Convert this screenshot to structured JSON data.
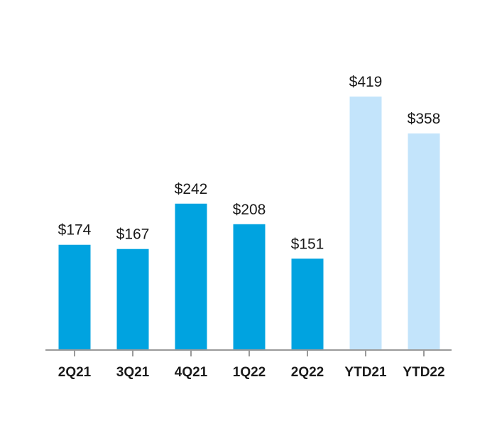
{
  "chart_data": {
    "type": "bar",
    "categories": [
      "2Q21",
      "3Q21",
      "4Q21",
      "1Q22",
      "2Q22",
      "YTD21",
      "YTD22"
    ],
    "values": [
      174,
      167,
      242,
      208,
      151,
      419,
      358
    ],
    "value_labels": [
      "$174",
      "$167",
      "$242",
      "$208",
      "$151",
      "$419",
      "$358"
    ],
    "bar_colors": [
      "#00a3e0",
      "#00a3e0",
      "#00a3e0",
      "#00a3e0",
      "#00a3e0",
      "#c3e4fb",
      "#c3e4fb"
    ],
    "axis_color": "#9a9a9a",
    "ylim": [
      0,
      419
    ],
    "grid": false,
    "legend": "none"
  }
}
